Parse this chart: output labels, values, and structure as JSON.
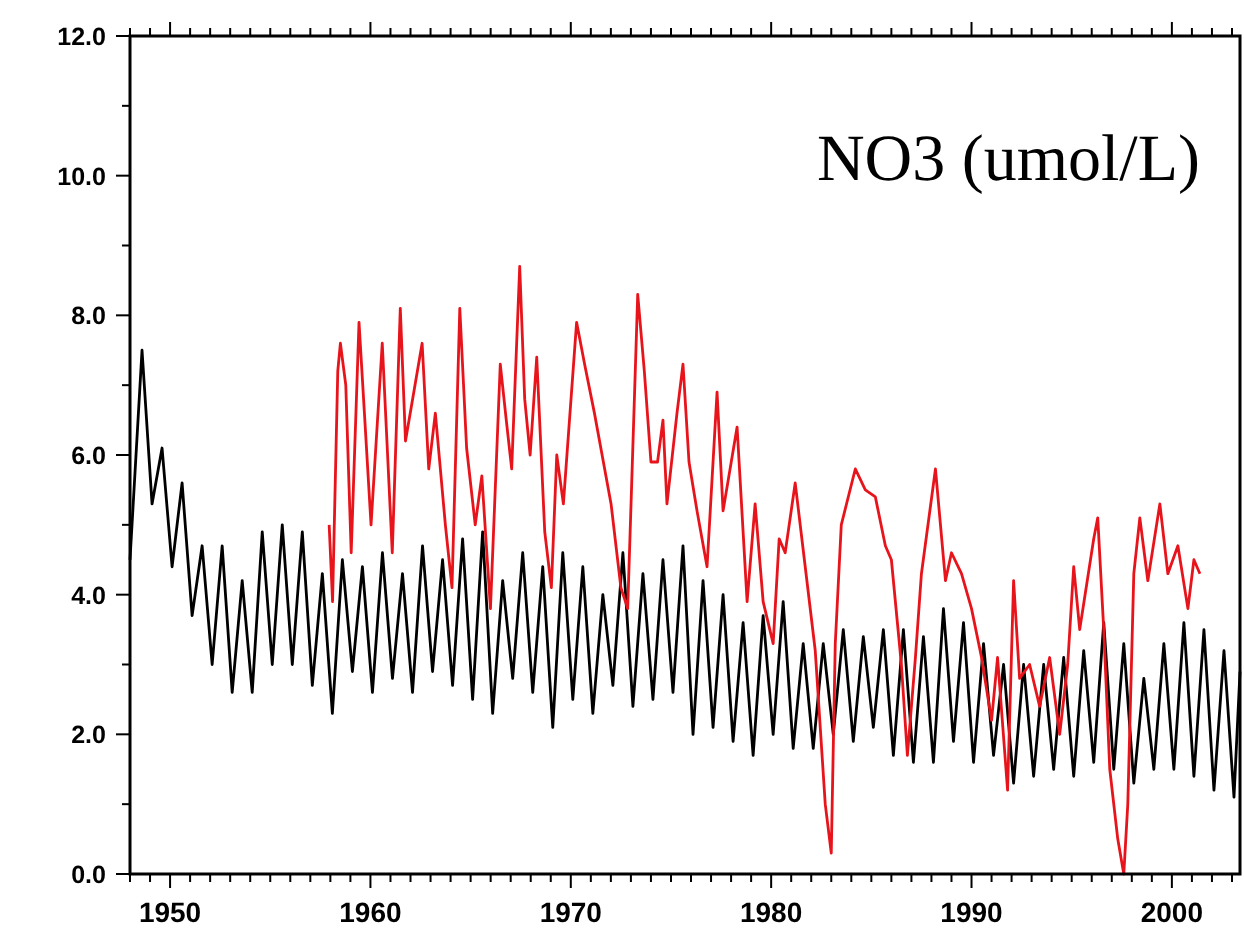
{
  "chart_data": {
    "type": "line",
    "annotations": [
      "NO3 (umol/L)"
    ],
    "xlim": [
      1948,
      2003.4
    ],
    "ylim": [
      0,
      12
    ],
    "xticks": [
      {
        "value": 1948,
        "label": null
      },
      {
        "value": 1949,
        "label": null
      },
      1950,
      {
        "value": 1951,
        "label": null
      },
      {
        "value": 1952,
        "label": null
      },
      {
        "value": 1953,
        "label": null
      },
      {
        "value": 1954,
        "label": null
      },
      {
        "value": 1955,
        "label": null
      },
      {
        "value": 1956,
        "label": null
      },
      {
        "value": 1957,
        "label": null
      },
      {
        "value": 1958,
        "label": null
      },
      {
        "value": 1959,
        "label": null
      },
      1960,
      {
        "value": 1961,
        "label": null
      },
      {
        "value": 1962,
        "label": null
      },
      {
        "value": 1963,
        "label": null
      },
      {
        "value": 1964,
        "label": null
      },
      {
        "value": 1965,
        "label": null
      },
      {
        "value": 1966,
        "label": null
      },
      {
        "value": 1967,
        "label": null
      },
      {
        "value": 1968,
        "label": null
      },
      {
        "value": 1969,
        "label": null
      },
      1970,
      {
        "value": 1971,
        "label": null
      },
      {
        "value": 1972,
        "label": null
      },
      {
        "value": 1973,
        "label": null
      },
      {
        "value": 1974,
        "label": null
      },
      {
        "value": 1975,
        "label": null
      },
      {
        "value": 1976,
        "label": null
      },
      {
        "value": 1977,
        "label": null
      },
      {
        "value": 1978,
        "label": null
      },
      {
        "value": 1979,
        "label": null
      },
      1980,
      {
        "value": 1981,
        "label": null
      },
      {
        "value": 1982,
        "label": null
      },
      {
        "value": 1983,
        "label": null
      },
      {
        "value": 1984,
        "label": null
      },
      {
        "value": 1985,
        "label": null
      },
      {
        "value": 1986,
        "label": null
      },
      {
        "value": 1987,
        "label": null
      },
      {
        "value": 1988,
        "label": null
      },
      {
        "value": 1989,
        "label": null
      },
      1990,
      {
        "value": 1991,
        "label": null
      },
      {
        "value": 1992,
        "label": null
      },
      {
        "value": 1993,
        "label": null
      },
      {
        "value": 1994,
        "label": null
      },
      {
        "value": 1995,
        "label": null
      },
      {
        "value": 1996,
        "label": null
      },
      {
        "value": 1997,
        "label": null
      },
      {
        "value": 1998,
        "label": null
      },
      {
        "value": 1999,
        "label": null
      },
      2000,
      {
        "value": 2001,
        "label": null
      },
      {
        "value": 2002,
        "label": null
      },
      {
        "value": 2003,
        "label": null
      }
    ],
    "yticks": [
      {
        "value": 0,
        "label": "0.0"
      },
      {
        "value": 1,
        "label": null
      },
      {
        "value": 2,
        "label": "2.0"
      },
      {
        "value": 3,
        "label": null
      },
      {
        "value": 4,
        "label": "4.0"
      },
      {
        "value": 5,
        "label": null
      },
      {
        "value": 6,
        "label": "6.0"
      },
      {
        "value": 7,
        "label": null
      },
      {
        "value": 8,
        "label": "8.0"
      },
      {
        "value": 9,
        "label": null
      },
      {
        "value": 10,
        "label": "10.0"
      },
      {
        "value": 11,
        "label": null
      },
      {
        "value": 12,
        "label": "12.0"
      }
    ],
    "series": [
      {
        "color": "#000000",
        "x": [
          1948,
          1948.6,
          1949.1,
          1949.6,
          1950.1,
          1950.6,
          1951.1,
          1951.6,
          1952.1,
          1952.6,
          1953.1,
          1953.6,
          1954.1,
          1954.6,
          1955.1,
          1955.6,
          1956.1,
          1956.6,
          1957.1,
          1957.6,
          1958.1,
          1958.6,
          1959.1,
          1959.6,
          1960.1,
          1960.6,
          1961.1,
          1961.6,
          1962.1,
          1962.6,
          1963.1,
          1963.6,
          1964.1,
          1964.6,
          1965.1,
          1965.6,
          1966.1,
          1966.6,
          1967.1,
          1967.6,
          1968.1,
          1968.6,
          1969.1,
          1969.6,
          1970.1,
          1970.6,
          1971.1,
          1971.6,
          1972.1,
          1972.6,
          1973.1,
          1973.6,
          1974.1,
          1974.6,
          1975.1,
          1975.6,
          1976.1,
          1976.6,
          1977.1,
          1977.6,
          1978.1,
          1978.6,
          1979.1,
          1979.6,
          1980.1,
          1980.6,
          1981.1,
          1981.6,
          1982.1,
          1982.6,
          1983.1,
          1983.6,
          1984.1,
          1984.6,
          1985.1,
          1985.6,
          1986.1,
          1986.6,
          1987.1,
          1987.6,
          1988.1,
          1988.6,
          1989.1,
          1989.6,
          1990.1,
          1990.6,
          1991.1,
          1991.6,
          1992.1,
          1992.6,
          1993.1,
          1993.6,
          1994.1,
          1994.6,
          1995.1,
          1995.6,
          1996.1,
          1996.6,
          1997.1,
          1997.6,
          1998.1,
          1998.6,
          1999.1,
          1999.6,
          2000.1,
          2000.6,
          2001.1,
          2001.6,
          2002.1,
          2002.6,
          2003.1,
          2003.4
        ],
        "values": [
          4.5,
          7.5,
          5.3,
          6.1,
          4.4,
          5.6,
          3.7,
          4.7,
          3.0,
          4.7,
          2.6,
          4.2,
          2.6,
          4.9,
          3.0,
          5.0,
          3.0,
          4.9,
          2.7,
          4.3,
          2.3,
          4.5,
          2.9,
          4.4,
          2.6,
          4.6,
          2.8,
          4.3,
          2.6,
          4.7,
          2.9,
          4.5,
          2.7,
          4.8,
          2.5,
          4.9,
          2.3,
          4.2,
          2.8,
          4.6,
          2.6,
          4.4,
          2.1,
          4.6,
          2.5,
          4.4,
          2.3,
          4.0,
          2.7,
          4.6,
          2.4,
          4.3,
          2.5,
          4.5,
          2.6,
          4.7,
          2.0,
          4.2,
          2.1,
          4.0,
          1.9,
          3.6,
          1.7,
          3.7,
          2.0,
          3.9,
          1.8,
          3.3,
          1.8,
          3.3,
          2.0,
          3.5,
          1.9,
          3.4,
          2.1,
          3.5,
          1.7,
          3.5,
          1.6,
          3.4,
          1.6,
          3.8,
          1.9,
          3.6,
          1.6,
          3.3,
          1.7,
          3.0,
          1.3,
          3.0,
          1.4,
          3.0,
          1.5,
          3.1,
          1.4,
          3.2,
          1.6,
          3.6,
          1.5,
          3.3,
          1.3,
          2.8,
          1.5,
          3.3,
          1.5,
          3.6,
          1.4,
          3.5,
          1.2,
          3.2,
          1.1,
          2.9
        ]
      },
      {
        "color": "#e8141b",
        "x": [
          1957.94,
          1958.11,
          1958.37,
          1958.5,
          1958.77,
          1959.04,
          1959.43,
          1959.7,
          1960.03,
          1960.59,
          1961.09,
          1961.49,
          1961.75,
          1962.58,
          1962.91,
          1963.24,
          1963.74,
          1964.07,
          1964.46,
          1964.8,
          1965.23,
          1965.56,
          1965.99,
          1966.48,
          1966.78,
          1967.05,
          1967.45,
          1967.7,
          1967.97,
          1968.3,
          1968.7,
          1969.03,
          1969.3,
          1969.63,
          1970.29,
          1970.69,
          1971.18,
          1972.01,
          1972.5,
          1972.84,
          1973.34,
          1973.67,
          1974.0,
          1974.33,
          1974.6,
          1974.8,
          1975.3,
          1975.6,
          1975.9,
          1976.3,
          1976.8,
          1977.3,
          1977.6,
          1978.3,
          1978.8,
          1979.2,
          1979.6,
          1980.1,
          1980.4,
          1980.7,
          1981.2,
          1981.7,
          1982.2,
          1982.7,
          1983.0,
          1983.2,
          1983.5,
          1984.2,
          1984.7,
          1985.2,
          1985.7,
          1986.0,
          1986.5,
          1986.8,
          1987.2,
          1987.5,
          1988.2,
          1988.7,
          1989.0,
          1989.5,
          1990.0,
          1990.5,
          1991.0,
          1991.3,
          1991.8,
          1992.1,
          1992.4,
          1992.9,
          1993.4,
          1993.9,
          1994.4,
          1994.8,
          1995.1,
          1995.4,
          1996.1,
          1996.3,
          1996.6,
          1996.9,
          1997.3,
          1997.6,
          1997.8,
          1998.1,
          1998.4,
          1998.8,
          1999.4,
          1999.8,
          2000.3,
          2000.8,
          2001.1,
          2001.4
        ],
        "values": [
          5.0,
          3.9,
          7.2,
          7.6,
          7.0,
          4.6,
          7.9,
          6.6,
          5.0,
          7.6,
          4.6,
          8.1,
          6.2,
          7.6,
          5.8,
          6.6,
          5.0,
          4.1,
          8.1,
          6.1,
          5.0,
          5.7,
          3.8,
          7.3,
          6.5,
          5.8,
          8.7,
          6.8,
          6.0,
          7.4,
          4.9,
          4.1,
          6.0,
          5.3,
          7.9,
          7.3,
          6.6,
          5.3,
          4.1,
          3.8,
          8.3,
          7.2,
          5.9,
          5.9,
          6.5,
          5.3,
          6.6,
          7.3,
          5.9,
          5.2,
          4.4,
          6.9,
          5.2,
          6.4,
          3.9,
          5.3,
          3.9,
          3.3,
          4.8,
          4.6,
          5.6,
          4.4,
          3.2,
          1.0,
          0.3,
          3.3,
          5.0,
          5.8,
          5.5,
          5.4,
          4.7,
          4.5,
          3.0,
          1.7,
          3.1,
          4.3,
          5.8,
          4.2,
          4.6,
          4.3,
          3.8,
          3.1,
          2.2,
          3.1,
          1.2,
          4.2,
          2.8,
          3.0,
          2.4,
          3.1,
          2.0,
          3.0,
          4.4,
          3.5,
          4.8,
          5.1,
          3.5,
          1.5,
          0.5,
          0.0,
          1.0,
          4.3,
          5.1,
          4.2,
          5.3,
          4.3,
          4.7,
          3.8,
          4.5,
          4.3
        ]
      }
    ]
  }
}
